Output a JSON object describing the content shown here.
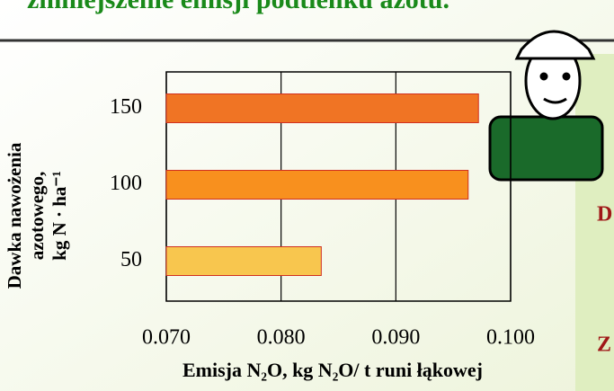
{
  "header": {
    "title": "zmniejszenie emisji podtlenku azotu."
  },
  "side_letters": [
    "D",
    "Z"
  ],
  "chart_data": {
    "type": "bar",
    "orientation": "horizontal",
    "categories": [
      "150",
      "100",
      "50"
    ],
    "values": [
      0.0972,
      0.0963,
      0.0835
    ],
    "colors": [
      "#f07424",
      "#f8901e",
      "#f8c64e"
    ],
    "xlim": [
      0.07,
      0.1
    ],
    "xticks": [
      {
        "value": 0.07,
        "label": "0.070"
      },
      {
        "value": 0.08,
        "label": "0.080"
      },
      {
        "value": 0.09,
        "label": "0.090"
      },
      {
        "value": 0.1,
        "label": "0.100"
      }
    ],
    "grid": true,
    "xlabel": "Emisja N₂O, kg N₂O/ t runi łąkowej",
    "ylabel": [
      "Dawka nawożenia",
      "azotowego,",
      "kg N · ha⁻¹"
    ]
  }
}
